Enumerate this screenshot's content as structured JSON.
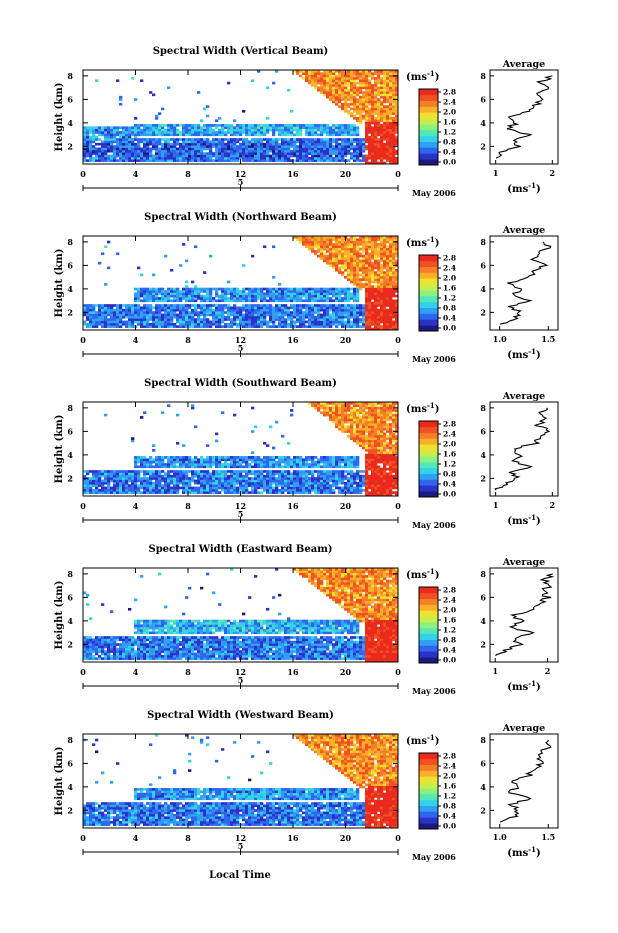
{
  "xlabel_bottom": "Local Time",
  "colors": {
    "colormap": [
      "#1a1a80",
      "#2a32c8",
      "#2f66f0",
      "#2fa0f2",
      "#34d2e6",
      "#54e8b8",
      "#8cf07c",
      "#c8ee4c",
      "#f0e030",
      "#f8b02a",
      "#f67e26",
      "#f05022",
      "#ea2a1c"
    ],
    "no_data": "#ffffff"
  },
  "panels": [
    {
      "title": "Spectral Width (Vertical Beam)",
      "ylabel": "Height (km)",
      "yticks": [
        "2",
        "4",
        "6",
        "8"
      ],
      "xticks": [
        "0",
        "4",
        "8",
        "12",
        "16",
        "20",
        "0"
      ],
      "date_tick": "5",
      "date_label": "May 2006",
      "unit_label": "(ms-1)",
      "colorbar_ticks": [
        "2.8",
        "2.4",
        "2.0",
        "1.6",
        "1.2",
        "0.8",
        "0.4",
        "0.0"
      ],
      "average": {
        "title": "Average",
        "xticks": [
          "1",
          "2"
        ],
        "yticks": [
          "2",
          "4",
          "6",
          "8"
        ],
        "xlabel": "(ms-1)"
      }
    },
    {
      "title": "Spectral Width (Northward Beam)",
      "ylabel": "Height (km)",
      "yticks": [
        "2",
        "4",
        "6",
        "8"
      ],
      "xticks": [
        "0",
        "4",
        "8",
        "12",
        "16",
        "20",
        "0"
      ],
      "date_tick": "5",
      "date_label": "May 2006",
      "unit_label": "(ms-1)",
      "colorbar_ticks": [
        "2.8",
        "2.4",
        "2.0",
        "1.6",
        "1.2",
        "0.8",
        "0.4",
        "0.0"
      ],
      "average": {
        "title": "Average",
        "xticks": [
          "1.0",
          "1.5"
        ],
        "yticks": [
          "2",
          "4",
          "6",
          "8"
        ],
        "xlabel": "(ms-1)"
      }
    },
    {
      "title": "Spectral Width (Southward Beam)",
      "ylabel": "Height (km)",
      "yticks": [
        "2",
        "4",
        "6",
        "8"
      ],
      "xticks": [
        "0",
        "4",
        "8",
        "12",
        "16",
        "20",
        "0"
      ],
      "date_tick": "5",
      "date_label": "May 2006",
      "unit_label": "(ms-1)",
      "colorbar_ticks": [
        "2.8",
        "2.4",
        "2.0",
        "1.6",
        "1.2",
        "0.8",
        "0.4",
        "0.0"
      ],
      "average": {
        "title": "Average",
        "xticks": [
          "1",
          "2"
        ],
        "yticks": [
          "2",
          "4",
          "6",
          "8"
        ],
        "xlabel": "(ms-1)"
      }
    },
    {
      "title": "Spectral Width (Eastward Beam)",
      "ylabel": "Height (km)",
      "yticks": [
        "2",
        "4",
        "6",
        "8"
      ],
      "xticks": [
        "0",
        "4",
        "8",
        "12",
        "16",
        "20",
        "0"
      ],
      "date_tick": "5",
      "date_label": "May 2006",
      "unit_label": "(ms-1)",
      "colorbar_ticks": [
        "2.8",
        "2.4",
        "2.0",
        "1.6",
        "1.2",
        "0.8",
        "0.4",
        "0.0"
      ],
      "average": {
        "title": "Average",
        "xticks": [
          "1",
          "2"
        ],
        "yticks": [
          "2",
          "4",
          "6",
          "8"
        ],
        "xlabel": "(ms-1)"
      }
    },
    {
      "title": "Spectral Width (Westward Beam)",
      "ylabel": "Height (km)",
      "yticks": [
        "2",
        "4",
        "6",
        "8"
      ],
      "xticks": [
        "0",
        "4",
        "8",
        "12",
        "16",
        "20",
        "0"
      ],
      "date_tick": "5",
      "date_label": "May 2006",
      "unit_label": "(ms-1)",
      "colorbar_ticks": [
        "2.8",
        "2.4",
        "2.0",
        "1.6",
        "1.2",
        "0.8",
        "0.4",
        "0.0"
      ],
      "average": {
        "title": "Average",
        "xticks": [
          "1.0",
          "1.5"
        ],
        "yticks": [
          "2",
          "4",
          "6",
          "8"
        ],
        "xlabel": "(ms-1)"
      }
    }
  ],
  "chart_data": [
    {
      "type": "heatmap",
      "title": "Spectral Width (Vertical Beam)",
      "xlabel": "",
      "ylabel": "Height (km)",
      "xlim": [
        0,
        24
      ],
      "ylim": [
        0.5,
        8.5
      ],
      "colorbar_range": [
        0.0,
        2.8
      ],
      "features": [
        {
          "desc": "layer",
          "x": [
            0,
            22
          ],
          "y": [
            1.2,
            2.3
          ],
          "value": 0.5
        },
        {
          "desc": "layer",
          "x": [
            4,
            21
          ],
          "y": [
            3.0,
            3.9
          ],
          "value": 0.8
        },
        {
          "desc": "layer",
          "x": [
            0,
            4
          ],
          "y": [
            2.6,
            3.6
          ],
          "value": 0.7
        },
        {
          "desc": "late-evening region",
          "x": [
            16,
            24
          ],
          "y": [
            4.0,
            8.5
          ],
          "value": 2.2
        },
        {
          "desc": "late-evening region",
          "x": [
            21.5,
            24
          ],
          "y": [
            0.5,
            4.0
          ],
          "value": 2.8
        }
      ],
      "average_profile": {
        "xlim": [
          0.9,
          2.1
        ],
        "ylim": [
          0.5,
          8.5
        ],
        "height": [
          1,
          1.5,
          2,
          2.5,
          3,
          3.5,
          4,
          4.5,
          5,
          5.5,
          6,
          6.5,
          7,
          7.5,
          8
        ],
        "value": [
          1.0,
          1.1,
          1.4,
          1.3,
          1.6,
          1.2,
          1.35,
          1.2,
          1.55,
          1.7,
          1.85,
          1.75,
          1.9,
          1.8,
          2.0
        ]
      }
    },
    {
      "type": "heatmap",
      "title": "Spectral Width (Northward Beam)",
      "xlabel": "",
      "ylabel": "Height (km)",
      "xlim": [
        0,
        24
      ],
      "ylim": [
        0.5,
        8.5
      ],
      "colorbar_range": [
        0.0,
        2.8
      ],
      "features": [
        {
          "desc": "layer",
          "x": [
            0,
            22
          ],
          "y": [
            1.0,
            2.2
          ],
          "value": 0.6
        },
        {
          "desc": "layer",
          "x": [
            4,
            21
          ],
          "y": [
            3.0,
            4.0
          ],
          "value": 0.7
        },
        {
          "desc": "late-evening region",
          "x": [
            16,
            24
          ],
          "y": [
            4.0,
            8.5
          ],
          "value": 2.2
        },
        {
          "desc": "late-evening region",
          "x": [
            21.5,
            24
          ],
          "y": [
            0.5,
            4.0
          ],
          "value": 2.8
        }
      ],
      "average_profile": {
        "xlim": [
          0.9,
          1.6
        ],
        "ylim": [
          0.5,
          8.5
        ],
        "height": [
          1,
          1.5,
          2,
          2.5,
          3,
          3.5,
          4,
          4.5,
          5,
          5.5,
          6,
          6.5,
          7,
          7.5,
          8
        ],
        "value": [
          1.0,
          1.15,
          1.2,
          1.1,
          1.3,
          1.15,
          1.2,
          1.1,
          1.3,
          1.35,
          1.45,
          1.35,
          1.4,
          1.5,
          1.45
        ]
      }
    },
    {
      "type": "heatmap",
      "title": "Spectral Width (Southward Beam)",
      "xlabel": "",
      "ylabel": "Height (km)",
      "xlim": [
        0,
        24
      ],
      "ylim": [
        0.5,
        8.5
      ],
      "colorbar_range": [
        0.0,
        2.8
      ],
      "features": [
        {
          "desc": "layer",
          "x": [
            0,
            22
          ],
          "y": [
            1.0,
            2.2
          ],
          "value": 0.6
        },
        {
          "desc": "layer",
          "x": [
            4,
            21
          ],
          "y": [
            3.0,
            3.8
          ],
          "value": 0.7
        },
        {
          "desc": "late-evening region",
          "x": [
            17,
            24
          ],
          "y": [
            4.0,
            8.5
          ],
          "value": 2.2
        },
        {
          "desc": "late-evening region",
          "x": [
            21.5,
            24
          ],
          "y": [
            0.5,
            4.0
          ],
          "value": 2.8
        }
      ],
      "average_profile": {
        "xlim": [
          0.9,
          2.1
        ],
        "ylim": [
          0.5,
          8.5
        ],
        "height": [
          1,
          1.5,
          2,
          2.5,
          3,
          3.5,
          4,
          4.5,
          5,
          5.5,
          6,
          6.5,
          7,
          7.5,
          8
        ],
        "value": [
          1.0,
          1.2,
          1.4,
          1.3,
          1.6,
          1.3,
          1.45,
          1.3,
          1.7,
          1.8,
          1.95,
          1.75,
          1.85,
          1.8,
          1.9
        ]
      }
    },
    {
      "type": "heatmap",
      "title": "Spectral Width (Eastward Beam)",
      "xlabel": "",
      "ylabel": "Height (km)",
      "xlim": [
        0,
        24
      ],
      "ylim": [
        0.5,
        8.5
      ],
      "colorbar_range": [
        0.0,
        2.8
      ],
      "features": [
        {
          "desc": "layer",
          "x": [
            0,
            22
          ],
          "y": [
            1.0,
            2.2
          ],
          "value": 0.6
        },
        {
          "desc": "layer",
          "x": [
            4,
            21
          ],
          "y": [
            3.0,
            4.0
          ],
          "value": 0.8
        },
        {
          "desc": "late-evening region",
          "x": [
            16,
            24
          ],
          "y": [
            4.0,
            8.5
          ],
          "value": 2.2
        },
        {
          "desc": "late-evening region",
          "x": [
            21.5,
            24
          ],
          "y": [
            0.5,
            4.0
          ],
          "value": 2.8
        }
      ],
      "average_profile": {
        "xlim": [
          0.9,
          2.2
        ],
        "ylim": [
          0.5,
          8.5
        ],
        "height": [
          1,
          1.5,
          2,
          2.5,
          3,
          3.5,
          4,
          4.5,
          5,
          5.5,
          6,
          6.5,
          7,
          7.5,
          8
        ],
        "value": [
          1.0,
          1.2,
          1.5,
          1.35,
          1.7,
          1.3,
          1.5,
          1.35,
          1.75,
          1.85,
          2.0,
          1.9,
          2.05,
          1.95,
          2.1
        ]
      }
    },
    {
      "type": "heatmap",
      "title": "Spectral Width (Westward Beam)",
      "xlabel": "Local Time",
      "ylabel": "Height (km)",
      "xlim": [
        0,
        24
      ],
      "ylim": [
        0.5,
        8.5
      ],
      "colorbar_range": [
        0.0,
        2.8
      ],
      "features": [
        {
          "desc": "layer",
          "x": [
            0,
            22
          ],
          "y": [
            1.0,
            2.2
          ],
          "value": 0.6
        },
        {
          "desc": "layer",
          "x": [
            4,
            21
          ],
          "y": [
            2.9,
            3.8
          ],
          "value": 0.7
        },
        {
          "desc": "late-evening region",
          "x": [
            16,
            24
          ],
          "y": [
            4.0,
            8.5
          ],
          "value": 2.2
        },
        {
          "desc": "late-evening region",
          "x": [
            21.5,
            24
          ],
          "y": [
            0.5,
            4.0
          ],
          "value": 2.8
        }
      ],
      "average_profile": {
        "xlim": [
          0.9,
          1.6
        ],
        "ylim": [
          0.5,
          8.5
        ],
        "height": [
          1,
          1.5,
          2,
          2.5,
          3,
          3.5,
          4,
          4.5,
          5,
          5.5,
          6,
          6.5,
          7,
          7.5,
          8
        ],
        "value": [
          1.0,
          1.15,
          1.2,
          1.1,
          1.3,
          1.1,
          1.2,
          1.1,
          1.3,
          1.35,
          1.45,
          1.4,
          1.45,
          1.5,
          1.5
        ]
      }
    }
  ]
}
